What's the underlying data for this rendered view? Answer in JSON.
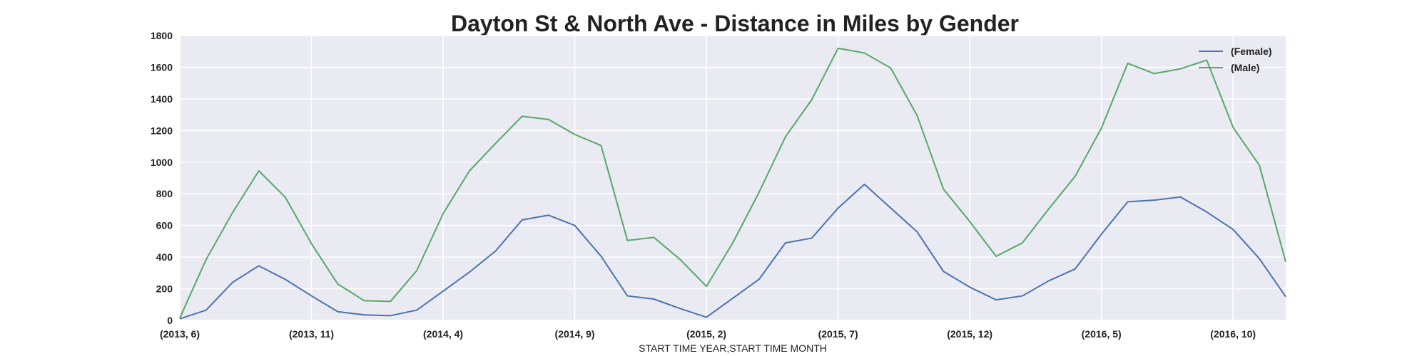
{
  "chart_data": {
    "type": "line",
    "title": "Dayton St & North Ave - Distance in Miles by Gender",
    "xlabel": "START TIME YEAR,START TIME MONTH",
    "ylabel": "",
    "ylim": [
      0,
      1800
    ],
    "yticks": [
      0,
      200,
      400,
      600,
      800,
      1000,
      1200,
      1400,
      1600,
      1800
    ],
    "x": [
      "(2013, 6)",
      "(2013, 7)",
      "(2013, 8)",
      "(2013, 9)",
      "(2013, 10)",
      "(2013, 11)",
      "(2013, 12)",
      "(2014, 1)",
      "(2014, 2)",
      "(2014, 3)",
      "(2014, 4)",
      "(2014, 5)",
      "(2014, 6)",
      "(2014, 7)",
      "(2014, 8)",
      "(2014, 9)",
      "(2014, 10)",
      "(2014, 11)",
      "(2014, 12)",
      "(2015, 1)",
      "(2015, 2)",
      "(2015, 3)",
      "(2015, 4)",
      "(2015, 5)",
      "(2015, 6)",
      "(2015, 7)",
      "(2015, 8)",
      "(2015, 9)",
      "(2015, 10)",
      "(2015, 11)",
      "(2015, 12)",
      "(2016, 1)",
      "(2016, 2)",
      "(2016, 3)",
      "(2016, 4)",
      "(2016, 5)",
      "(2016, 6)",
      "(2016, 7)",
      "(2016, 8)",
      "(2016, 9)",
      "(2016, 10)",
      "(2016, 11)",
      "(2016, 12)"
    ],
    "xtick_labels": [
      "(2013, 6)",
      "(2013, 11)",
      "(2014, 4)",
      "(2014, 9)",
      "(2015, 2)",
      "(2015, 7)",
      "(2015, 12)",
      "(2016, 5)",
      "(2016, 10)"
    ],
    "series": [
      {
        "name": "(Female)",
        "color": "#4c72b0",
        "values": [
          10,
          65,
          240,
          345,
          260,
          155,
          55,
          35,
          30,
          65,
          185,
          305,
          440,
          635,
          665,
          600,
          405,
          155,
          135,
          75,
          20,
          140,
          260,
          490,
          520,
          710,
          860,
          710,
          560,
          310,
          210,
          130,
          155,
          250,
          325,
          545,
          750,
          760,
          780,
          685,
          575,
          390,
          150
        ]
      },
      {
        "name": "(Male)",
        "color": "#55a868",
        "values": [
          15,
          385,
          680,
          945,
          780,
          485,
          230,
          125,
          120,
          315,
          675,
          945,
          1120,
          1290,
          1270,
          1175,
          1105,
          505,
          525,
          385,
          215,
          490,
          810,
          1160,
          1395,
          1720,
          1690,
          1595,
          1295,
          830,
          625,
          405,
          490,
          705,
          910,
          1215,
          1625,
          1560,
          1590,
          1645,
          1220,
          980,
          370
        ]
      }
    ],
    "grid": true,
    "legend_position": "top-right",
    "background_color": "#eaeaf2",
    "grid_color": "#ffffff"
  }
}
